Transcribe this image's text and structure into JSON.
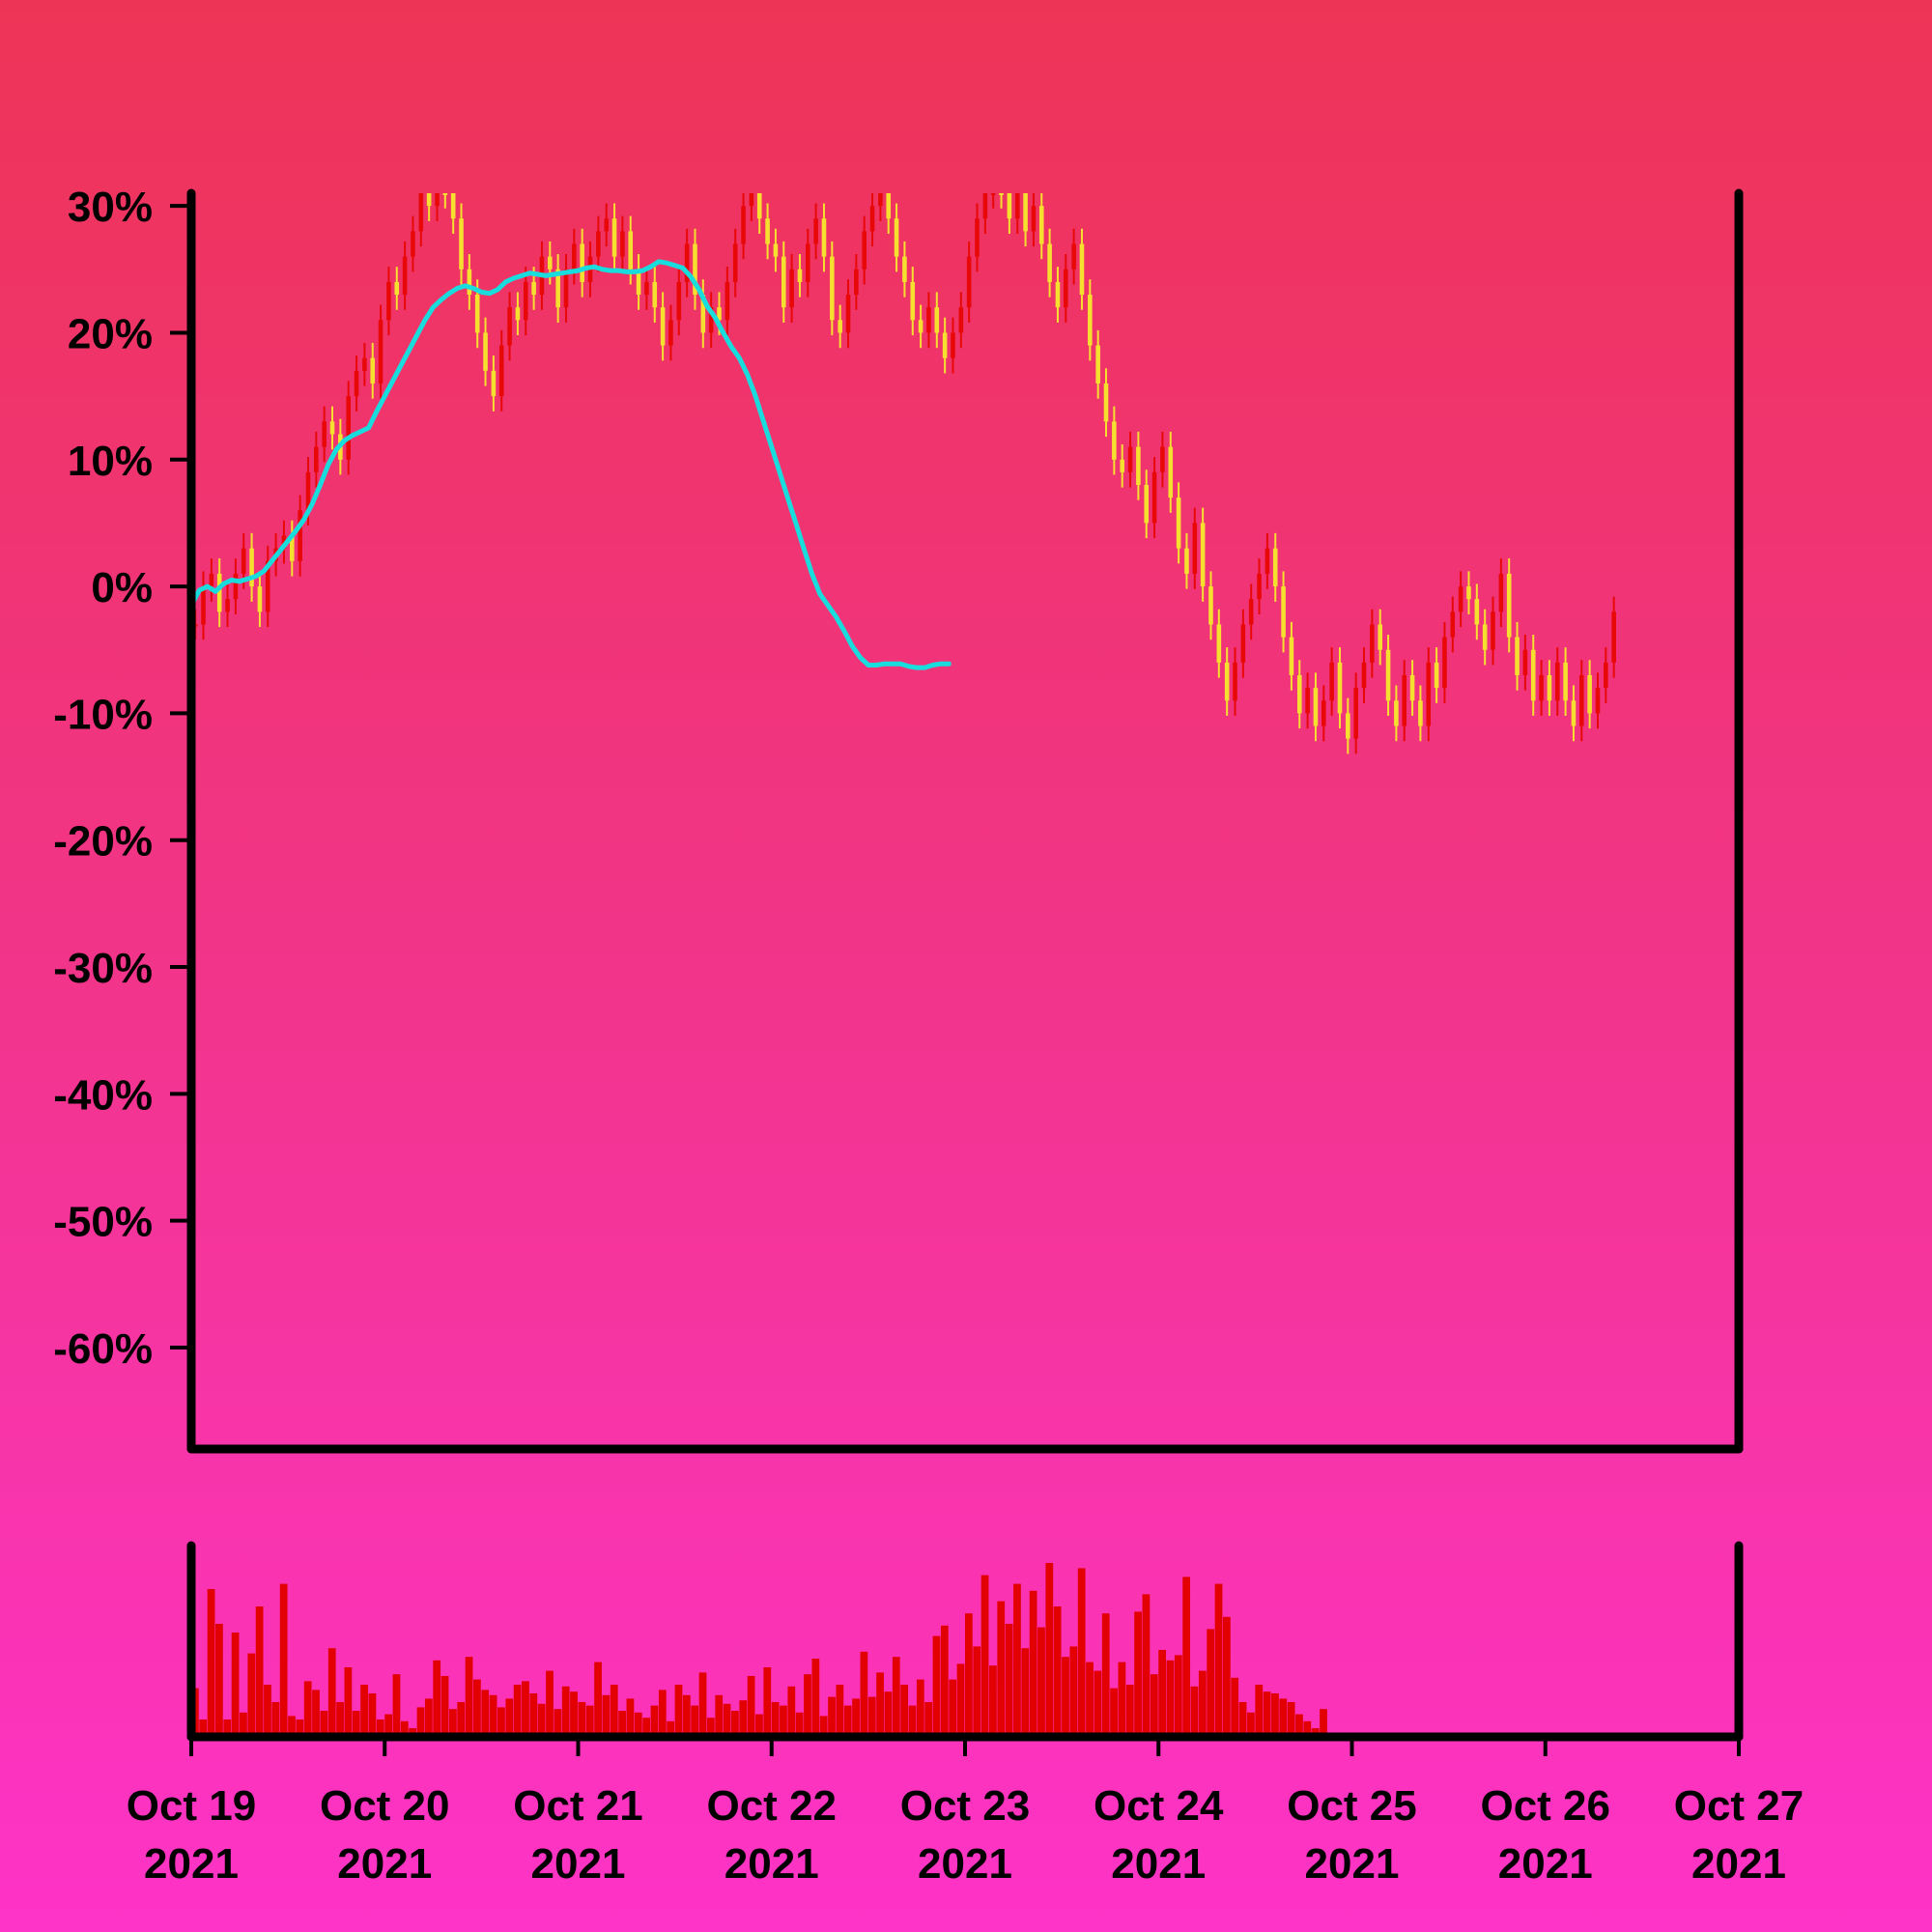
{
  "chart_data": {
    "type": "candlestick",
    "title": "",
    "xlabel": "",
    "ylabel": "",
    "ylim": [
      -68,
      31
    ],
    "y_ticks": [
      {
        "value": 30,
        "label": "30%"
      },
      {
        "value": 20,
        "label": "20%"
      },
      {
        "value": 10,
        "label": "10%"
      },
      {
        "value": 0,
        "label": "0%"
      },
      {
        "value": -10,
        "label": "-10%"
      },
      {
        "value": -20,
        "label": "-20%"
      },
      {
        "value": -30,
        "label": "-30%"
      },
      {
        "value": -40,
        "label": "-40%"
      },
      {
        "value": -50,
        "label": "-50%"
      },
      {
        "value": -60,
        "label": "-60%"
      }
    ],
    "x_range": [
      "2021-10-19",
      "2021-10-27"
    ],
    "x_ticks": [
      {
        "date": "2021-10-19",
        "line1": "Oct 19",
        "line2": "2021"
      },
      {
        "date": "2021-10-20",
        "line1": "Oct 20",
        "line2": "2021"
      },
      {
        "date": "2021-10-21",
        "line1": "Oct 21",
        "line2": "2021"
      },
      {
        "date": "2021-10-22",
        "line1": "Oct 22",
        "line2": "2021"
      },
      {
        "date": "2021-10-23",
        "line1": "Oct 23",
        "line2": "2021"
      },
      {
        "date": "2021-10-24",
        "line1": "Oct 24",
        "line2": "2021"
      },
      {
        "date": "2021-10-25",
        "line1": "Oct 25",
        "line2": "2021"
      },
      {
        "date": "2021-10-26",
        "line1": "Oct 26",
        "line2": "2021"
      },
      {
        "date": "2021-10-27",
        "line1": "Oct 27",
        "line2": "2021"
      }
    ],
    "grid": false,
    "legend": "none",
    "colors": {
      "candle_up": "#e80808",
      "candle_down": "#f5e030",
      "moving_average": "#19dddd",
      "volume": "#e20000",
      "axes": "#000000"
    },
    "close_series": {
      "name": "",
      "start": "2021-10-19",
      "interval_hours": 1,
      "values": [
        -3,
        0,
        1,
        -2,
        -1,
        1,
        3,
        0,
        -2,
        2,
        3,
        4,
        2,
        6,
        9,
        11,
        13,
        12,
        10,
        15,
        17,
        18,
        16,
        21,
        24,
        23,
        26,
        28,
        31,
        30,
        32,
        31,
        29,
        25,
        23,
        20,
        17,
        15,
        19,
        22,
        21,
        24,
        23,
        26,
        25,
        22,
        25,
        27,
        24,
        26,
        28,
        29,
        26,
        28,
        25,
        23,
        24,
        22,
        19,
        21,
        24,
        27,
        23,
        20,
        22,
        21,
        24,
        27,
        30,
        31,
        29,
        27,
        26,
        22,
        25,
        24,
        27,
        29,
        26,
        21,
        20,
        23,
        25,
        28,
        30,
        31,
        29,
        26,
        24,
        21,
        20,
        22,
        20,
        18,
        20,
        22,
        26,
        29,
        31,
        33,
        31,
        29,
        32,
        28,
        30,
        27,
        24,
        22,
        25,
        27,
        23,
        19,
        16,
        13,
        10,
        9,
        11,
        8,
        5,
        9,
        11,
        7,
        3,
        1,
        5,
        0,
        -3,
        -6,
        -9,
        -6,
        -3,
        -1,
        1,
        3,
        0,
        -4,
        -7,
        -10,
        -8,
        -11,
        -9,
        -6,
        -10,
        -12,
        -8,
        -6,
        -3,
        -5,
        -9,
        -11,
        -7,
        -9,
        -11,
        -6,
        -8,
        -4,
        -2,
        0,
        -1,
        -3,
        -5,
        -2,
        1,
        -4,
        -7,
        -5,
        -9,
        -7,
        -9,
        -6,
        -9,
        -11,
        -7,
        -10,
        -8,
        -6,
        -2
      ]
    },
    "moving_average_series": {
      "name": "",
      "start": "2021-10-19",
      "interval_hours": 1,
      "values": [
        -1.5,
        -0.3,
        0,
        -0.4,
        0.2,
        0.5,
        0.4,
        0.6,
        0.8,
        1.2,
        2,
        2.8,
        3.6,
        4.4,
        5.3,
        6.5,
        8,
        9.6,
        10.8,
        11.5,
        11.9,
        12.2,
        12.5,
        13.8,
        15,
        16.2,
        17.4,
        18.6,
        19.8,
        21,
        22,
        22.6,
        23.1,
        23.5,
        23.7,
        23.5,
        23.2,
        23.1,
        23.4,
        24,
        24.3,
        24.5,
        24.7,
        24.6,
        24.5,
        24.6,
        24.7,
        24.8,
        24.9,
        25.1,
        25.2,
        25,
        24.9,
        24.9,
        24.8,
        24.8,
        24.9,
        25.2,
        25.6,
        25.5,
        25.3,
        25.1,
        24.4,
        23.4,
        22.1,
        21.2,
        20,
        18.9,
        18,
        16.7,
        15,
        13,
        11,
        9,
        7,
        5,
        3,
        1,
        -0.6,
        -1.5,
        -2.4,
        -3.5,
        -4.7,
        -5.6,
        -6.2,
        -6.2,
        -6.1,
        -6.1,
        -6.1,
        -6.3,
        -6.4,
        -6.4,
        -6.2,
        -6.1,
        -6.1
      ]
    },
    "volume_series": {
      "name": "",
      "start": "2021-10-19",
      "interval_hours": 1,
      "values": [
        0.28,
        0.1,
        0.85,
        0.65,
        0.1,
        0.6,
        0.14,
        0.48,
        0.75,
        0.3,
        0.2,
        0.88,
        0.12,
        0.1,
        0.32,
        0.27,
        0.15,
        0.51,
        0.2,
        0.4,
        0.15,
        0.3,
        0.25,
        0.1,
        0.13,
        0.36,
        0.09,
        0.05,
        0.17,
        0.22,
        0.44,
        0.35,
        0.16,
        0.2,
        0.46,
        0.33,
        0.27,
        0.24,
        0.17,
        0.22,
        0.3,
        0.32,
        0.25,
        0.19,
        0.38,
        0.16,
        0.29,
        0.26,
        0.2,
        0.18,
        0.43,
        0.24,
        0.3,
        0.15,
        0.22,
        0.14,
        0.11,
        0.18,
        0.27,
        0.09,
        0.3,
        0.24,
        0.18,
        0.37,
        0.11,
        0.24,
        0.19,
        0.15,
        0.21,
        0.35,
        0.13,
        0.4,
        0.2,
        0.18,
        0.29,
        0.14,
        0.36,
        0.45,
        0.12,
        0.23,
        0.3,
        0.18,
        0.22,
        0.49,
        0.23,
        0.37,
        0.26,
        0.46,
        0.3,
        0.18,
        0.33,
        0.2,
        0.58,
        0.64,
        0.33,
        0.42,
        0.71,
        0.52,
        0.93,
        0.41,
        0.78,
        0.65,
        0.88,
        0.51,
        0.84,
        0.63,
        1.0,
        0.75,
        0.46,
        0.52,
        0.97,
        0.43,
        0.38,
        0.71,
        0.28,
        0.43,
        0.3,
        0.72,
        0.82,
        0.36,
        0.5,
        0.44,
        0.47,
        0.92,
        0.29,
        0.38,
        0.62,
        0.88,
        0.69,
        0.34,
        0.2,
        0.14,
        0.3,
        0.26,
        0.25,
        0.22,
        0.2,
        0.13,
        0.09,
        0.05,
        0.16
      ]
    }
  }
}
